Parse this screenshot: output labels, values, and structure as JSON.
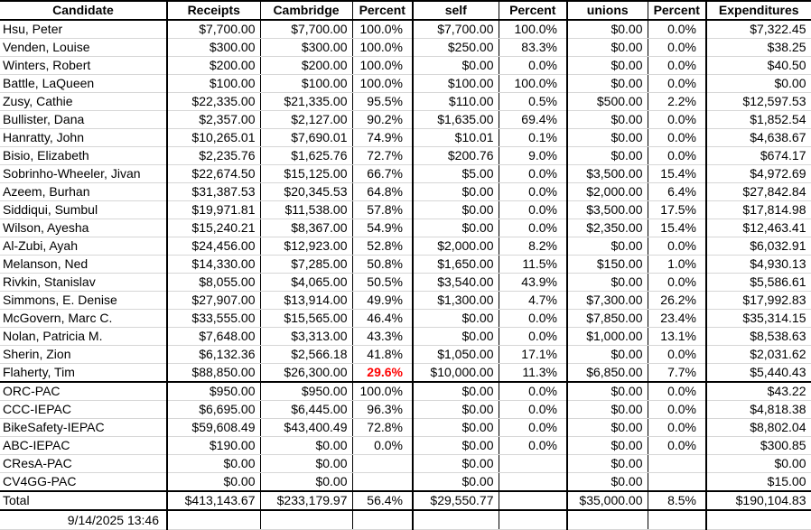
{
  "colors": {
    "alert_text": "#ff0000",
    "grid_line": "#d6d6d6",
    "border": "#000000"
  },
  "table": {
    "columns": [
      {
        "key": "candidate",
        "label": "Candidate"
      },
      {
        "key": "receipts",
        "label": "Receipts"
      },
      {
        "key": "cambridge",
        "label": "Cambridge"
      },
      {
        "key": "pct_cambridge",
        "label": "Percent"
      },
      {
        "key": "self",
        "label": "self"
      },
      {
        "key": "pct_self",
        "label": "Percent"
      },
      {
        "key": "unions",
        "label": "unions"
      },
      {
        "key": "pct_unions",
        "label": "Percent"
      },
      {
        "key": "expenditures",
        "label": "Expenditures"
      }
    ],
    "candidates": [
      {
        "candidate": "Hsu, Peter",
        "receipts": "$7,700.00",
        "cambridge": "$7,700.00",
        "pct_cambridge": "100.0%",
        "self": "$7,700.00",
        "pct_self": "100.0%",
        "unions": "$0.00",
        "pct_unions": "0.0%",
        "expenditures": "$7,322.45"
      },
      {
        "candidate": "Venden, Louise",
        "receipts": "$300.00",
        "cambridge": "$300.00",
        "pct_cambridge": "100.0%",
        "self": "$250.00",
        "pct_self": "83.3%",
        "unions": "$0.00",
        "pct_unions": "0.0%",
        "expenditures": "$38.25"
      },
      {
        "candidate": "Winters, Robert",
        "receipts": "$200.00",
        "cambridge": "$200.00",
        "pct_cambridge": "100.0%",
        "self": "$0.00",
        "pct_self": "0.0%",
        "unions": "$0.00",
        "pct_unions": "0.0%",
        "expenditures": "$40.50"
      },
      {
        "candidate": "Battle, LaQueen",
        "receipts": "$100.00",
        "cambridge": "$100.00",
        "pct_cambridge": "100.0%",
        "self": "$100.00",
        "pct_self": "100.0%",
        "unions": "$0.00",
        "pct_unions": "0.0%",
        "expenditures": "$0.00"
      },
      {
        "candidate": "Zusy, Cathie",
        "receipts": "$22,335.00",
        "cambridge": "$21,335.00",
        "pct_cambridge": "95.5%",
        "self": "$110.00",
        "pct_self": "0.5%",
        "unions": "$500.00",
        "pct_unions": "2.2%",
        "expenditures": "$12,597.53"
      },
      {
        "candidate": "Bullister, Dana",
        "receipts": "$2,357.00",
        "cambridge": "$2,127.00",
        "pct_cambridge": "90.2%",
        "self": "$1,635.00",
        "pct_self": "69.4%",
        "unions": "$0.00",
        "pct_unions": "0.0%",
        "expenditures": "$1,852.54"
      },
      {
        "candidate": "Hanratty, John",
        "receipts": "$10,265.01",
        "cambridge": "$7,690.01",
        "pct_cambridge": "74.9%",
        "self": "$10.01",
        "pct_self": "0.1%",
        "unions": "$0.00",
        "pct_unions": "0.0%",
        "expenditures": "$4,638.67"
      },
      {
        "candidate": "Bisio, Elizabeth",
        "receipts": "$2,235.76",
        "cambridge": "$1,625.76",
        "pct_cambridge": "72.7%",
        "self": "$200.76",
        "pct_self": "9.0%",
        "unions": "$0.00",
        "pct_unions": "0.0%",
        "expenditures": "$674.17"
      },
      {
        "candidate": "Sobrinho-Wheeler, Jivan",
        "receipts": "$22,674.50",
        "cambridge": "$15,125.00",
        "pct_cambridge": "66.7%",
        "self": "$5.00",
        "pct_self": "0.0%",
        "unions": "$3,500.00",
        "pct_unions": "15.4%",
        "expenditures": "$4,972.69"
      },
      {
        "candidate": "Azeem, Burhan",
        "receipts": "$31,387.53",
        "cambridge": "$20,345.53",
        "pct_cambridge": "64.8%",
        "self": "$0.00",
        "pct_self": "0.0%",
        "unions": "$2,000.00",
        "pct_unions": "6.4%",
        "expenditures": "$27,842.84"
      },
      {
        "candidate": "Siddiqui, Sumbul",
        "receipts": "$19,971.81",
        "cambridge": "$11,538.00",
        "pct_cambridge": "57.8%",
        "self": "$0.00",
        "pct_self": "0.0%",
        "unions": "$3,500.00",
        "pct_unions": "17.5%",
        "expenditures": "$17,814.98"
      },
      {
        "candidate": "Wilson, Ayesha",
        "receipts": "$15,240.21",
        "cambridge": "$8,367.00",
        "pct_cambridge": "54.9%",
        "self": "$0.00",
        "pct_self": "0.0%",
        "unions": "$2,350.00",
        "pct_unions": "15.4%",
        "expenditures": "$12,463.41"
      },
      {
        "candidate": "Al-Zubi, Ayah",
        "receipts": "$24,456.00",
        "cambridge": "$12,923.00",
        "pct_cambridge": "52.8%",
        "self": "$2,000.00",
        "pct_self": "8.2%",
        "unions": "$0.00",
        "pct_unions": "0.0%",
        "expenditures": "$6,032.91"
      },
      {
        "candidate": "Melanson, Ned",
        "receipts": "$14,330.00",
        "cambridge": "$7,285.00",
        "pct_cambridge": "50.8%",
        "self": "$1,650.00",
        "pct_self": "11.5%",
        "unions": "$150.00",
        "pct_unions": "1.0%",
        "expenditures": "$4,930.13"
      },
      {
        "candidate": "Rivkin, Stanislav",
        "receipts": "$8,055.00",
        "cambridge": "$4,065.00",
        "pct_cambridge": "50.5%",
        "self": "$3,540.00",
        "pct_self": "43.9%",
        "unions": "$0.00",
        "pct_unions": "0.0%",
        "expenditures": "$5,586.61"
      },
      {
        "candidate": "Simmons, E. Denise",
        "receipts": "$27,907.00",
        "cambridge": "$13,914.00",
        "pct_cambridge": "49.9%",
        "self": "$1,300.00",
        "pct_self": "4.7%",
        "unions": "$7,300.00",
        "pct_unions": "26.2%",
        "expenditures": "$17,992.83"
      },
      {
        "candidate": "McGovern, Marc C.",
        "receipts": "$33,555.00",
        "cambridge": "$15,565.00",
        "pct_cambridge": "46.4%",
        "self": "$0.00",
        "pct_self": "0.0%",
        "unions": "$7,850.00",
        "pct_unions": "23.4%",
        "expenditures": "$35,314.15"
      },
      {
        "candidate": "Nolan, Patricia M.",
        "receipts": "$7,648.00",
        "cambridge": "$3,313.00",
        "pct_cambridge": "43.3%",
        "self": "$0.00",
        "pct_self": "0.0%",
        "unions": "$1,000.00",
        "pct_unions": "13.1%",
        "expenditures": "$8,538.63"
      },
      {
        "candidate": "Sherin, Zion",
        "receipts": "$6,132.36",
        "cambridge": "$2,566.18",
        "pct_cambridge": "41.8%",
        "self": "$1,050.00",
        "pct_self": "17.1%",
        "unions": "$0.00",
        "pct_unions": "0.0%",
        "expenditures": "$2,031.62"
      },
      {
        "candidate": "Flaherty, Tim",
        "receipts": "$88,850.00",
        "cambridge": "$26,300.00",
        "pct_cambridge": "29.6%",
        "self": "$10,000.00",
        "pct_self": "11.3%",
        "unions": "$6,850.00",
        "pct_unions": "7.7%",
        "expenditures": "$5,440.43",
        "highlight": "pct_cambridge"
      }
    ],
    "pacs": [
      {
        "candidate": "ORC-PAC",
        "receipts": "$950.00",
        "cambridge": "$950.00",
        "pct_cambridge": "100.0%",
        "self": "$0.00",
        "pct_self": "0.0%",
        "unions": "$0.00",
        "pct_unions": "0.0%",
        "expenditures": "$43.22"
      },
      {
        "candidate": "CCC-IEPAC",
        "receipts": "$6,695.00",
        "cambridge": "$6,445.00",
        "pct_cambridge": "96.3%",
        "self": "$0.00",
        "pct_self": "0.0%",
        "unions": "$0.00",
        "pct_unions": "0.0%",
        "expenditures": "$4,818.38"
      },
      {
        "candidate": "BikeSafety-IEPAC",
        "receipts": "$59,608.49",
        "cambridge": "$43,400.49",
        "pct_cambridge": "72.8%",
        "self": "$0.00",
        "pct_self": "0.0%",
        "unions": "$0.00",
        "pct_unions": "0.0%",
        "expenditures": "$8,802.04"
      },
      {
        "candidate": "ABC-IEPAC",
        "receipts": "$190.00",
        "cambridge": "$0.00",
        "pct_cambridge": "0.0%",
        "self": "$0.00",
        "pct_self": "0.0%",
        "unions": "$0.00",
        "pct_unions": "0.0%",
        "expenditures": "$300.85"
      },
      {
        "candidate": "CResA-PAC",
        "receipts": "$0.00",
        "cambridge": "$0.00",
        "pct_cambridge": "",
        "self": "$0.00",
        "pct_self": "",
        "unions": "$0.00",
        "pct_unions": "",
        "expenditures": "$0.00"
      },
      {
        "candidate": "CV4GG-PAC",
        "receipts": "$0.00",
        "cambridge": "$0.00",
        "pct_cambridge": "",
        "self": "$0.00",
        "pct_self": "",
        "unions": "$0.00",
        "pct_unions": "",
        "expenditures": "$15.00"
      }
    ],
    "total": {
      "candidate": "Total",
      "receipts": "$413,143.67",
      "cambridge": "$233,179.97",
      "pct_cambridge": "56.4%",
      "self": "$29,550.77",
      "pct_self": "",
      "unions": "$35,000.00",
      "pct_unions": "8.5%",
      "expenditures": "$190,104.83"
    },
    "footer_timestamp": "9/14/2025 13:46"
  }
}
